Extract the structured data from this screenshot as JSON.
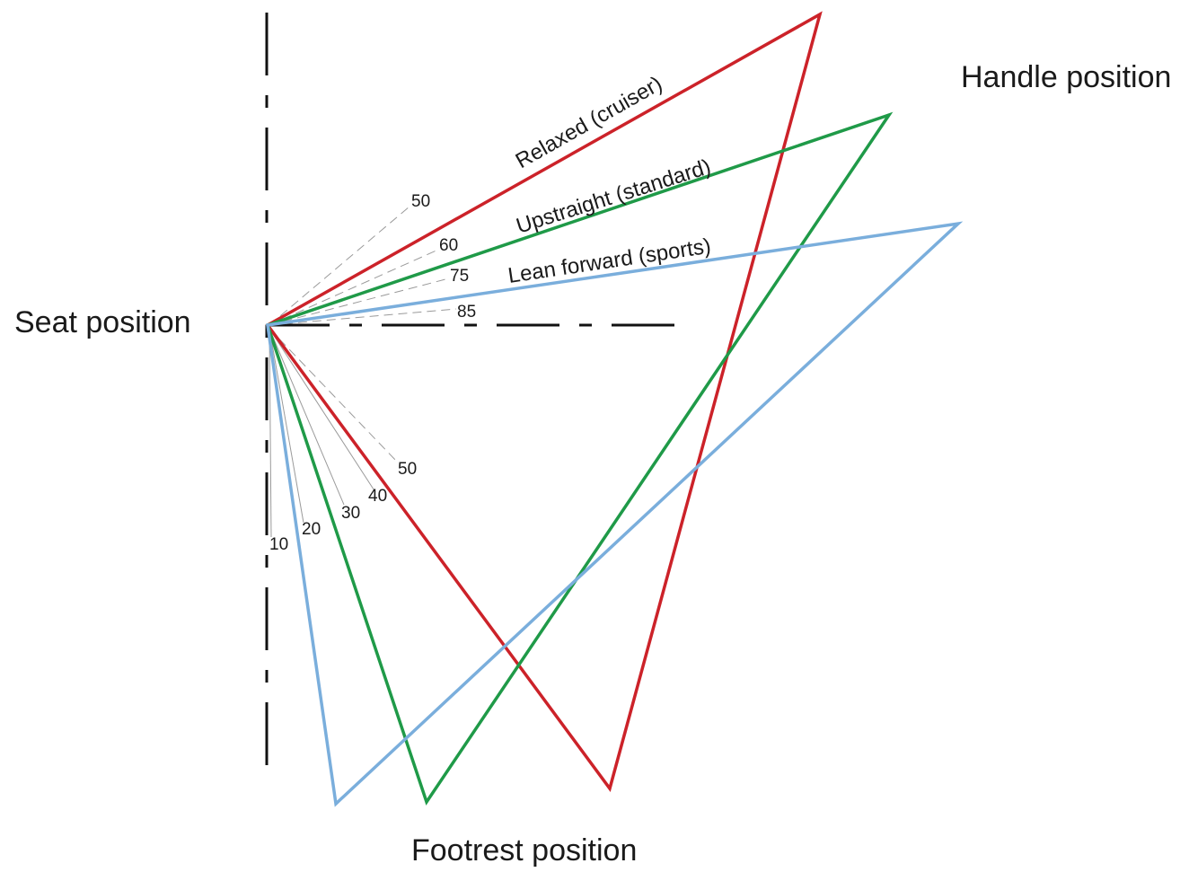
{
  "labels": {
    "seat": "Seat position",
    "handle": "Handle position",
    "footrest": "Footrest position"
  },
  "postures": [
    {
      "id": "relaxed",
      "label": "Relaxed (cruiser)",
      "color": "#cc2229"
    },
    {
      "id": "upstraight",
      "label": "Upstraight (standard)",
      "color": "#1f9a48"
    },
    {
      "id": "lean-forward",
      "label": "Lean forward  (sports)",
      "color": "#7aaedc"
    }
  ],
  "upper_angles": [
    "50",
    "60",
    "75",
    "85"
  ],
  "lower_angles": [
    "10",
    "20",
    "30",
    "40",
    "50"
  ],
  "reference_line_color": "#111111"
}
